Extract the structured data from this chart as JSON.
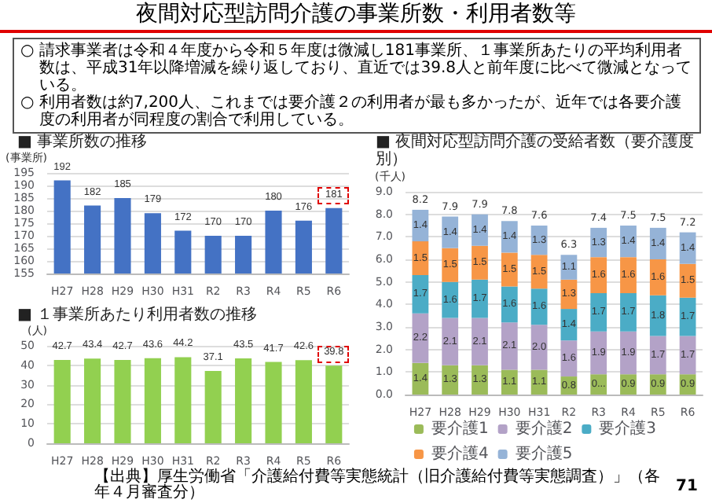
{
  "chart_data": [
    {
      "type": "other",
      "title": "夜間対応型訪問介護の事業所数・利用者数等",
      "annotations": [
        "○ 請求事業者は令和４年度から令和５年度は微減し181事業所、１事業所あたりの平均利用者数は、平成31年以降増減を繰り返しており、直近では39.8人と前年度に比べて微減となっている。",
        "○ 利用者数は約7,200人、これまでは要介護２の利用者が最も多かったが、近年では各要介護度の利用者が同程度の割合で利用している。",
        "【出典】厚生労働省「介護給付費等実態統計（旧介護給付費等実態調査）」（各年４月審査分）",
        "71"
      ]
    },
    {
      "type": "bar",
      "title": "■ 事業所数の推移",
      "ylabel": "(事業所)",
      "categories": [
        "H27",
        "H28",
        "H29",
        "H30",
        "H31",
        "R2",
        "R3",
        "R4",
        "R5",
        "R6"
      ],
      "values": [
        192,
        182,
        185,
        179,
        172,
        170,
        170,
        180,
        176,
        181
      ],
      "color": "#4472c4",
      "ylim": [
        155,
        195
      ],
      "yticks": [
        155,
        160,
        165,
        170,
        175,
        180,
        185,
        190,
        195
      ],
      "grid": "y",
      "data_labels": true
    },
    {
      "type": "bar",
      "title": "■ １事業所あたり利用者数の推移",
      "ylabel": "(人)",
      "categories": [
        "H27",
        "H28",
        "H29",
        "H30",
        "H31",
        "R2",
        "R3",
        "R4",
        "R5",
        "R6"
      ],
      "values": [
        42.7,
        43.4,
        42.7,
        43.6,
        44.2,
        37.1,
        43.5,
        41.7,
        42.6,
        39.8
      ],
      "color": "#92d050",
      "ylim": [
        0,
        50
      ],
      "yticks": [
        0,
        10,
        20,
        30,
        40,
        50
      ],
      "grid": "y",
      "data_labels": true
    },
    {
      "type": "bar",
      "title": "■ 夜間対応型訪問介護の受給者数（要介護度別）",
      "ylabel": "(千人)",
      "categories": [
        "H27",
        "H28",
        "H29",
        "H30",
        "H31",
        "R2",
        "R3",
        "R4",
        "R5",
        "R6"
      ],
      "stacked": true,
      "ylim": [
        0,
        9
      ],
      "yticks": [
        {
          "value": 0,
          "label": "0.0"
        },
        {
          "value": 1,
          "label": "1.0"
        },
        {
          "value": 2,
          "label": "2.0"
        },
        {
          "value": 3,
          "label": "3.0"
        },
        {
          "value": 4,
          "label": "4.0"
        },
        {
          "value": 5,
          "label": "5.0"
        },
        {
          "value": 6,
          "label": "6.0"
        },
        {
          "value": 7,
          "label": "7.0"
        },
        {
          "value": 8,
          "label": "8.0"
        },
        {
          "value": 9,
          "label": "9.0"
        }
      ],
      "grid": "y",
      "legend": "bottom",
      "totals": [
        "8.2",
        "7.9",
        "7.9",
        "7.8",
        "7.6",
        "6.3",
        "7.4",
        "7.5",
        "7.5",
        "7.2"
      ],
      "series": [
        {
          "name": "要介護1",
          "color": "#9bbb59",
          "values": [
            1.4,
            1.3,
            1.3,
            1.1,
            1.1,
            0.8,
            0.9,
            0.9,
            0.9,
            0.9
          ],
          "value_labels": [
            "1.4",
            "1.3",
            "1.3",
            "1.1",
            "1.1",
            "0.8",
            "0...",
            "0.9",
            "0.9",
            "0.9"
          ]
        },
        {
          "name": "要介護2",
          "color": "#b3a2c7",
          "values": [
            2.2,
            2.1,
            2.1,
            2.1,
            2.0,
            1.6,
            1.9,
            1.9,
            1.7,
            1.7
          ],
          "value_labels": [
            "2.2",
            "2.1",
            "2.1",
            "2.1",
            "2.0",
            "1.6",
            "1.9",
            "1.9",
            "1.7",
            "1.7"
          ]
        },
        {
          "name": "要介護3",
          "color": "#4bacc6",
          "values": [
            1.7,
            1.6,
            1.7,
            1.6,
            1.6,
            1.4,
            1.7,
            1.7,
            1.8,
            1.7
          ],
          "value_labels": [
            "1.7",
            "1.6",
            "1.7",
            "1.6",
            "1.6",
            "1.4",
            "1.7",
            "1.7",
            "1.8",
            "1.7"
          ]
        },
        {
          "name": "要介護4",
          "color": "#f79646",
          "values": [
            1.5,
            1.5,
            1.5,
            1.5,
            1.5,
            1.3,
            1.6,
            1.6,
            1.6,
            1.5
          ],
          "value_labels": [
            "1.5",
            "1.5",
            "1.5",
            "1.5",
            "1.5",
            "1.3",
            "1.6",
            "1.6",
            "1.6",
            "1.5"
          ]
        },
        {
          "name": "要介護5",
          "color": "#95b3d7",
          "values": [
            1.4,
            1.4,
            1.4,
            1.4,
            1.3,
            1.1,
            1.3,
            1.4,
            1.4,
            1.4
          ],
          "value_labels": [
            "1.4",
            "1.4",
            "1.4",
            "1.4",
            "1.3",
            "1.1",
            "1.3",
            "1.4",
            "1.4",
            "1.4"
          ]
        }
      ]
    }
  ]
}
